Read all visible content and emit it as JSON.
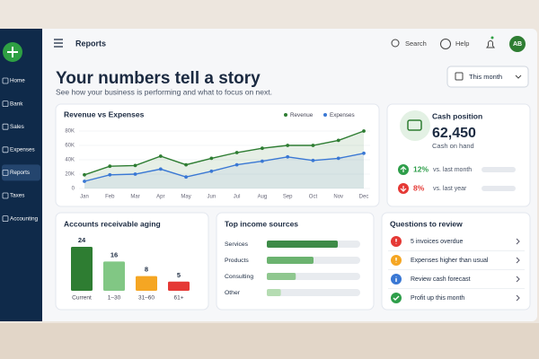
{
  "nav": {
    "items": [
      "Home",
      "Bank",
      "Sales",
      "Expenses",
      "Reports",
      "Taxes",
      "Accounting"
    ],
    "active": 4
  },
  "header": {
    "page": "Reports",
    "search": "Search",
    "help": "Help",
    "avatar": "AB"
  },
  "title": "Your numbers tell a story",
  "subtitle": "See how your business is performing and what to focus on next.",
  "filter": "This month",
  "revenue_chart": {
    "type": "line",
    "title": "Revenue vs Expenses",
    "categories": [
      "Jan",
      "Feb",
      "Mar",
      "Apr",
      "May",
      "Jun",
      "Jul",
      "Aug",
      "Sep",
      "Oct",
      "Nov",
      "Dec"
    ],
    "series": [
      {
        "name": "Revenue",
        "color": "#2e7d32",
        "values": [
          19000,
          31000,
          32000,
          45000,
          33000,
          42000,
          50000,
          56000,
          60000,
          60000,
          67000,
          80000
        ]
      },
      {
        "name": "Expenses",
        "color": "#3a78d4",
        "values": [
          10000,
          19000,
          20000,
          27000,
          16000,
          24000,
          33000,
          38000,
          44000,
          39000,
          42000,
          49000
        ]
      }
    ],
    "ylim": [
      0,
      80000
    ],
    "yticks": [
      0,
      {
        "value": 20000,
        "label": "20K"
      },
      {
        "value": 40000,
        "label": "40K"
      },
      {
        "value": 60000,
        "label": "60K"
      },
      {
        "value": 80000,
        "label": "80K"
      }
    ],
    "legend": "top-right"
  },
  "cash": {
    "title": "Cash position",
    "amount": "62,450",
    "caption": "Cash on hand",
    "changes": [
      {
        "value": "12%",
        "label": "vs. last month",
        "direction": "up"
      },
      {
        "value": "8%",
        "label": "vs. last year",
        "direction": "down"
      }
    ]
  },
  "aging_chart": {
    "type": "bar",
    "title": "Accounts receivable aging",
    "categories": [
      "Current",
      "1–30",
      "31–60",
      "61+"
    ],
    "values": [
      24,
      16,
      8,
      5
    ],
    "colors": [
      "#2e7d32",
      "#81c784",
      "#f5a623",
      "#e53935"
    ]
  },
  "income_chart": {
    "type": "hbar",
    "title": "Top income sources",
    "categories": [
      "Services",
      "Products",
      "Consulting",
      "Other"
    ],
    "values": [
      76,
      50,
      31,
      15
    ],
    "xlim": [
      0,
      100
    ],
    "colors": [
      "#3d8b47",
      "#6bb36f",
      "#8fc78f",
      "#b5dcb2"
    ]
  },
  "questions": {
    "title": "Questions to review",
    "items": [
      {
        "text": "5 invoices overdue",
        "icon": "alert",
        "color": "#e53935"
      },
      {
        "text": "Expenses higher than usual",
        "icon": "alert",
        "color": "#f5a623"
      },
      {
        "text": "Review cash forecast",
        "icon": "info",
        "color": "#3a78d4"
      },
      {
        "text": "Profit up this month",
        "icon": "check",
        "color": "#2e9e4a"
      }
    ]
  }
}
